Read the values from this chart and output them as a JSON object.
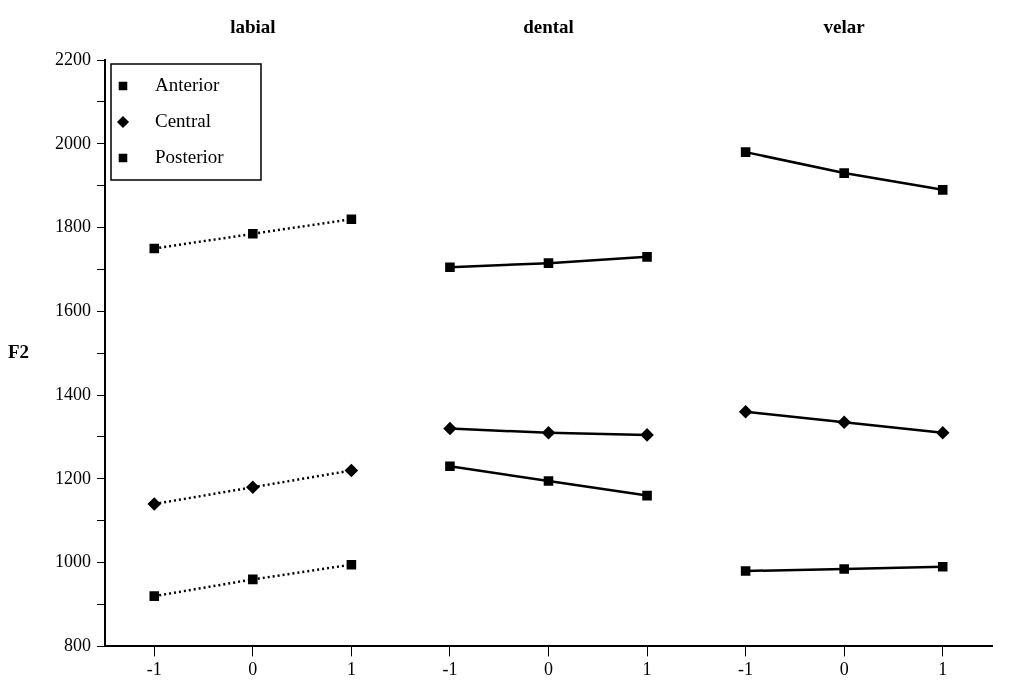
{
  "chart_data": {
    "type": "line",
    "ylabel": "F2",
    "annotations": [
      "labial",
      "dental",
      "velar"
    ],
    "categories": [
      "-1",
      "0",
      "1",
      "-1",
      "0",
      "1",
      "-1",
      "0",
      "1"
    ],
    "ylim": [
      800,
      2200
    ],
    "yticks": [
      800,
      {
        "value": 900,
        "label": null
      },
      1000,
      {
        "value": 1100,
        "label": null
      },
      1200,
      {
        "value": 1300,
        "label": null
      },
      1400,
      {
        "value": 1500,
        "label": null
      },
      1600,
      {
        "value": 1700,
        "label": null
      },
      1800,
      {
        "value": 1900,
        "label": null
      },
      2000,
      {
        "value": 2100,
        "label": null
      },
      2200
    ],
    "grid": false,
    "legend": "top left",
    "series": [
      {
        "name": "Anterior",
        "color": "#000000",
        "marker": "square",
        "line_style": "dotted",
        "values": [
          1750,
          1785,
          1820,
          null,
          null,
          null,
          null,
          null,
          null
        ]
      },
      {
        "name": "Central",
        "color": "#000000",
        "marker": "diamond",
        "line_style": "dotted",
        "values": [
          1140,
          1180,
          1220,
          null,
          null,
          null,
          null,
          null,
          null
        ]
      },
      {
        "name": "Posterior",
        "color": "#000000",
        "marker": "square",
        "line_style": "dotted",
        "values": [
          920,
          960,
          995,
          null,
          null,
          null,
          null,
          null,
          null
        ]
      },
      {
        "color": "#000000",
        "marker": "square",
        "line_style": "solid",
        "values": [
          null,
          null,
          null,
          1705,
          1715,
          1730,
          null,
          null,
          null
        ]
      },
      {
        "color": "#000000",
        "marker": "diamond",
        "line_style": "solid",
        "values": [
          null,
          null,
          null,
          1320,
          1310,
          1305,
          null,
          null,
          null
        ]
      },
      {
        "color": "#000000",
        "marker": "square",
        "line_style": "solid",
        "values": [
          null,
          null,
          null,
          1230,
          1195,
          1160,
          null,
          null,
          null
        ]
      },
      {
        "color": "#000000",
        "marker": "square",
        "line_style": "solid",
        "values": [
          null,
          null,
          null,
          null,
          null,
          null,
          1980,
          1930,
          1890
        ]
      },
      {
        "color": "#000000",
        "marker": "diamond",
        "line_style": "solid",
        "values": [
          null,
          null,
          null,
          null,
          null,
          null,
          1360,
          1335,
          1310
        ]
      },
      {
        "color": "#000000",
        "marker": "square",
        "line_style": "solid",
        "values": [
          null,
          null,
          null,
          null,
          null,
          null,
          980,
          985,
          990
        ]
      }
    ]
  }
}
